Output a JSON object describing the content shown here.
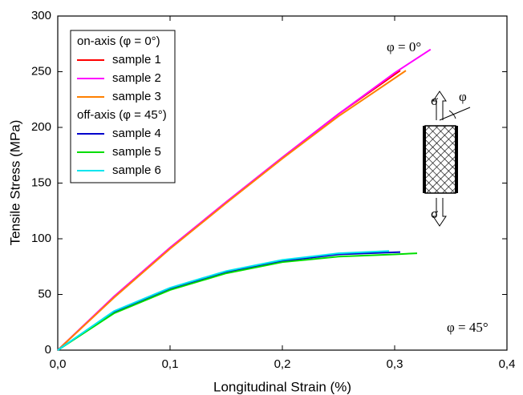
{
  "chart_data": {
    "type": "line",
    "x_label": "Longitudinal Strain (%)",
    "y_label": "Tensile Stress (MPa)",
    "xlim": [
      0,
      0.4
    ],
    "ylim": [
      0,
      300
    ],
    "xticks": [
      {
        "value": 0,
        "label": "0,0"
      },
      {
        "value": 0.1,
        "label": "0,1"
      },
      {
        "value": 0.2,
        "label": "0,2"
      },
      {
        "value": 0.3,
        "label": "0,3"
      },
      {
        "value": 0.4,
        "label": "0,4"
      }
    ],
    "yticks": [
      0,
      50,
      100,
      150,
      200,
      250,
      300
    ],
    "legend_position": "upper left",
    "groups": [
      {
        "title": "on-axis (φ = 0°)",
        "series": [
          {
            "name": "sample 1",
            "color": "#ff0000",
            "x": [
              0,
              0.05,
              0.1,
              0.15,
              0.2,
              0.25,
              0.305
            ],
            "values": [
              0,
              48,
              92,
              133,
              173,
              212,
              251
            ]
          },
          {
            "name": "sample 2",
            "color": "#ff00ff",
            "x": [
              0,
              0.05,
              0.1,
              0.15,
              0.2,
              0.25,
              0.3,
              0.332
            ],
            "values": [
              0,
              48,
              92,
              133,
              173,
              212,
              249,
              270
            ]
          },
          {
            "name": "sample 3",
            "color": "#ff8000",
            "x": [
              0,
              0.05,
              0.1,
              0.15,
              0.2,
              0.25,
              0.31
            ],
            "values": [
              0,
              47,
              91,
              132,
              172,
              210,
              251
            ]
          }
        ]
      },
      {
        "title": "off-axis (φ = 45°)",
        "series": [
          {
            "name": "sample 4",
            "color": "#0000cc",
            "x": [
              0,
              0.05,
              0.1,
              0.15,
              0.2,
              0.25,
              0.305
            ],
            "values": [
              0,
              34,
              55,
              70,
              80,
              86,
              88
            ]
          },
          {
            "name": "sample 5",
            "color": "#00dd00",
            "x": [
              0,
              0.05,
              0.1,
              0.15,
              0.2,
              0.25,
              0.3,
              0.32
            ],
            "values": [
              0,
              33,
              54,
              69,
              79,
              84,
              86,
              87
            ]
          },
          {
            "name": "sample 6",
            "color": "#00e5ee",
            "x": [
              0,
              0.05,
              0.1,
              0.15,
              0.2,
              0.25,
              0.295
            ],
            "values": [
              0,
              35,
              56,
              71,
              81,
              87,
              89
            ]
          }
        ]
      }
    ],
    "annotations": [
      "φ = 0°",
      "φ = 45°",
      "σ",
      "φ",
      "σ"
    ]
  }
}
